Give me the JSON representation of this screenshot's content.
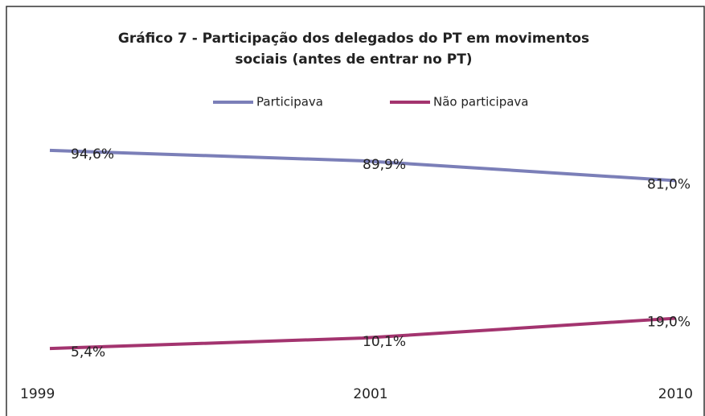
{
  "chart_data": {
    "type": "line",
    "title": [
      "Gráfico 7 - Participação dos delegados do PT em movimentos",
      "sociais (antes de entrar no PT)"
    ],
    "categories": [
      "1999",
      "2001",
      "2010"
    ],
    "series": [
      {
        "name": "Participava",
        "color": "#7b7fb8",
        "values": [
          94.6,
          89.9,
          81.0
        ],
        "value_labels": [
          "94,6%",
          "89,9%",
          "81,0%"
        ]
      },
      {
        "name": "Não participava",
        "color": "#a3346f",
        "values": [
          5.4,
          10.1,
          19.0
        ],
        "value_labels": [
          "5,4%",
          "10,1%",
          "19,0%"
        ]
      }
    ],
    "ylim": [
      0,
      100
    ]
  }
}
